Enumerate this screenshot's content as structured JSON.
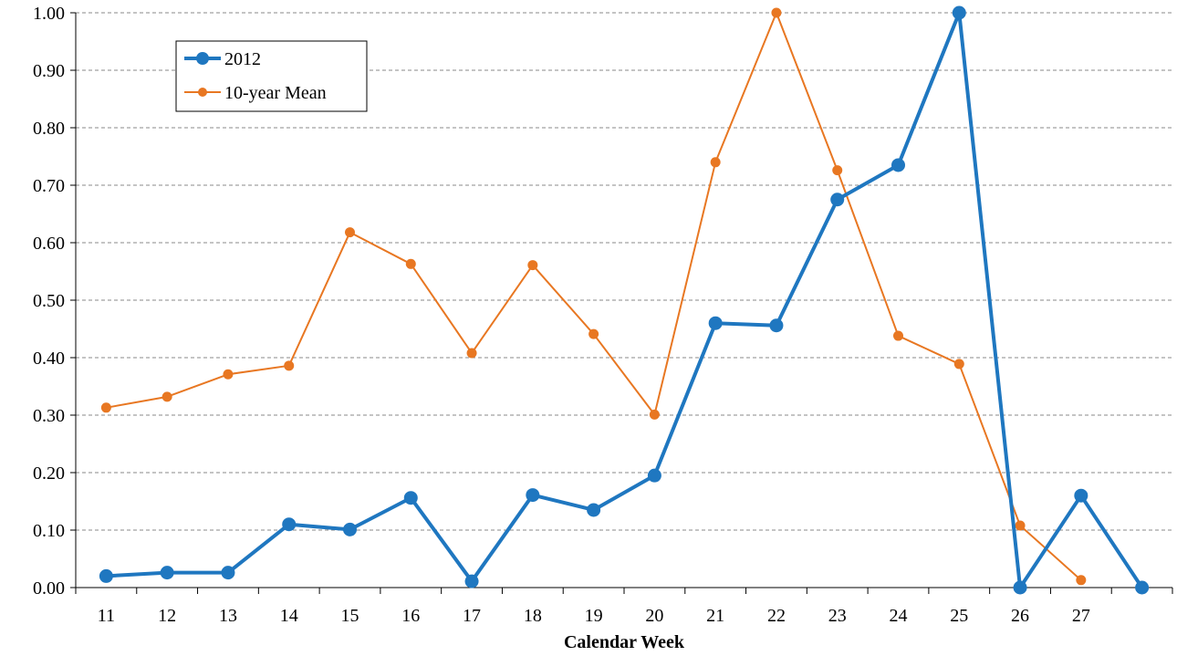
{
  "chart_data": {
    "type": "line",
    "title": "",
    "xlabel": "Calendar Week",
    "ylabel": "",
    "categories": [
      "11",
      "12",
      "13",
      "14",
      "15",
      "16",
      "17",
      "18",
      "19",
      "20",
      "21",
      "22",
      "23",
      "24",
      "25",
      "26",
      "27",
      ""
    ],
    "yticks": [
      "0.00",
      "0.10",
      "0.20",
      "0.30",
      "0.40",
      "0.50",
      "0.60",
      "0.70",
      "0.80",
      "0.90",
      "1.00"
    ],
    "ylim": [
      0,
      1
    ],
    "grid": true,
    "legend_position": "top-left",
    "series": [
      {
        "name": "2012",
        "color": "#1f77c0",
        "values": [
          0.02,
          0.026,
          0.026,
          0.11,
          0.101,
          0.156,
          0.011,
          0.161,
          0.135,
          0.195,
          0.46,
          0.456,
          0.675,
          0.735,
          1.0,
          0.0,
          0.16,
          0.0
        ]
      },
      {
        "name": "10-year Mean",
        "color": "#e87722",
        "values": [
          0.313,
          0.332,
          0.371,
          0.386,
          0.618,
          0.563,
          0.408,
          0.561,
          0.441,
          0.301,
          0.74,
          1.0,
          0.726,
          0.438,
          0.389,
          0.108,
          0.013,
          null
        ]
      }
    ]
  }
}
